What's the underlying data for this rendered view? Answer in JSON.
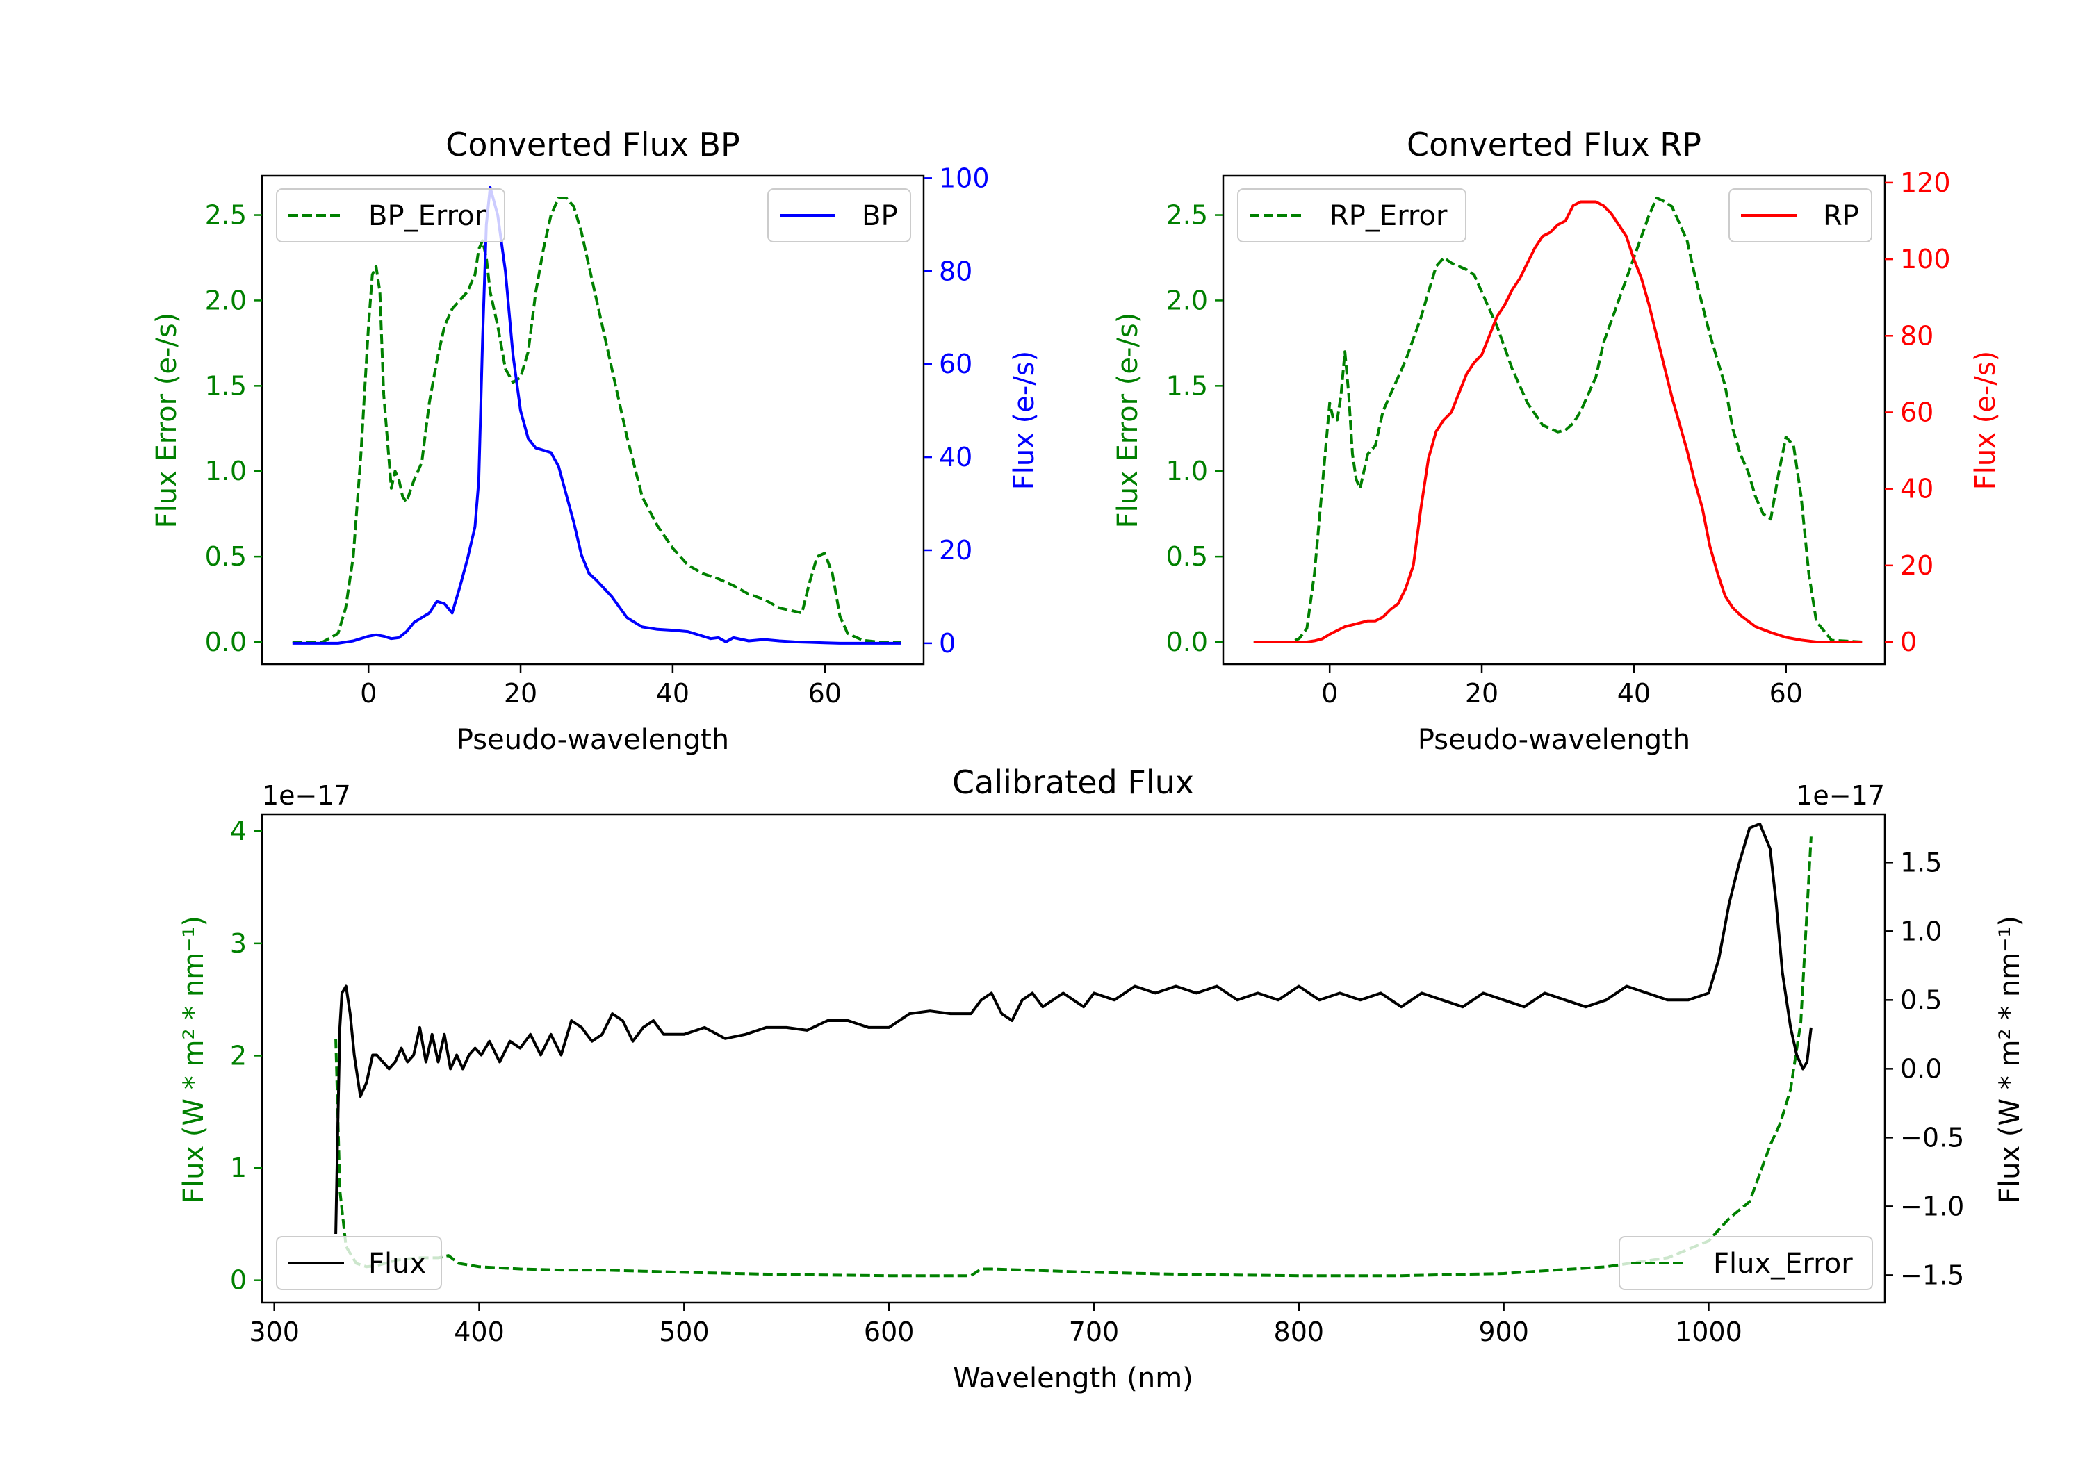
{
  "colors": {
    "error": "#008000",
    "bp": "#0000ff",
    "rp": "#ff0000",
    "flux": "#000000",
    "axis": "#000000"
  },
  "chart_data": [
    {
      "id": "bp",
      "type": "line",
      "title": "Converted Flux BP",
      "xlabel": "Pseudo-wavelength",
      "ylabel_left": "Flux Error (e-/s)",
      "ylabel_right": "Flux (e-/s)",
      "xlim": [
        -14,
        73
      ],
      "ylim_left": [
        -0.13,
        2.73
      ],
      "ylim_right": [
        -4.5,
        100.5
      ],
      "xticks": [
        0,
        20,
        40,
        60
      ],
      "yticks_left": [
        "0.0",
        "0.5",
        "1.0",
        "1.5",
        "2.0",
        "2.5"
      ],
      "yticks_right": [
        "0",
        "20",
        "40",
        "60",
        "80",
        "100"
      ],
      "series": [
        {
          "name": "BP_Error",
          "axis": "left",
          "style": "dashed",
          "color": "#008000",
          "x": [
            -10,
            -6,
            -4,
            -3,
            -2,
            -1,
            0,
            0.5,
            1,
            1.5,
            2,
            3,
            3.5,
            4,
            4.5,
            5,
            6,
            7,
            8,
            9,
            10,
            11,
            12,
            13,
            14,
            14.5,
            15,
            15.5,
            16,
            17,
            18,
            19,
            20,
            21,
            22,
            23,
            24,
            25,
            26,
            27,
            28,
            29,
            30,
            32,
            34,
            36,
            38,
            40,
            42,
            44,
            46,
            48,
            50,
            52,
            54,
            56,
            57,
            58,
            59,
            60,
            61,
            62,
            63,
            65,
            67,
            70
          ],
          "y": [
            0.0,
            0.0,
            0.05,
            0.2,
            0.5,
            1.1,
            1.85,
            2.15,
            2.2,
            2.05,
            1.45,
            0.9,
            1.0,
            0.95,
            0.85,
            0.82,
            0.95,
            1.05,
            1.4,
            1.65,
            1.85,
            1.95,
            2.0,
            2.05,
            2.15,
            2.3,
            2.35,
            2.25,
            2.05,
            1.85,
            1.6,
            1.52,
            1.55,
            1.7,
            2.05,
            2.3,
            2.5,
            2.6,
            2.6,
            2.55,
            2.4,
            2.2,
            2.0,
            1.6,
            1.2,
            0.85,
            0.68,
            0.55,
            0.45,
            0.4,
            0.37,
            0.33,
            0.28,
            0.25,
            0.2,
            0.18,
            0.17,
            0.35,
            0.5,
            0.52,
            0.4,
            0.15,
            0.05,
            0.01,
            0.0,
            0.0
          ]
        },
        {
          "name": "BP",
          "axis": "right",
          "style": "solid",
          "color": "#0000ff",
          "x": [
            -10,
            -4,
            -2,
            0,
            1,
            2,
            3,
            4,
            5,
            6,
            7,
            8,
            9,
            10,
            11,
            12,
            13,
            14,
            14.5,
            15,
            15.5,
            16,
            17,
            18,
            19,
            20,
            21,
            22,
            23,
            24,
            25,
            26,
            27,
            28,
            29,
            30,
            32,
            34,
            36,
            38,
            40,
            42,
            44,
            45,
            46,
            47,
            48,
            50,
            52,
            54,
            56,
            58,
            60,
            62,
            64,
            66,
            68,
            70
          ],
          "y": [
            0,
            0,
            0.5,
            1.5,
            1.8,
            1.5,
            1.0,
            1.2,
            2.5,
            4.5,
            5.5,
            6.5,
            9.0,
            8.5,
            6.5,
            12,
            18,
            25,
            35,
            65,
            90,
            98,
            92,
            80,
            62,
            50,
            44,
            42,
            41.5,
            41,
            38,
            32,
            26,
            19,
            15,
            13.5,
            10,
            5.5,
            3.5,
            3,
            2.8,
            2.5,
            1.5,
            1.0,
            1.2,
            0.3,
            1.2,
            0.5,
            0.8,
            0.5,
            0.3,
            0.2,
            0.1,
            0,
            0,
            0,
            0,
            0
          ]
        }
      ],
      "legend_left": "BP_Error",
      "legend_right": "BP"
    },
    {
      "id": "rp",
      "type": "line",
      "title": "Converted Flux RP",
      "xlabel": "Pseudo-wavelength",
      "ylabel_left": "Flux Error (e-/s)",
      "ylabel_right": "Flux (e-/s)",
      "xlim": [
        -14,
        73
      ],
      "ylim_left": [
        -0.13,
        2.73
      ],
      "ylim_right": [
        -5.8,
        121.8
      ],
      "xticks": [
        0,
        20,
        40,
        60
      ],
      "yticks_left": [
        "0.0",
        "0.5",
        "1.0",
        "1.5",
        "2.0",
        "2.5"
      ],
      "yticks_right": [
        "0",
        "20",
        "40",
        "60",
        "80",
        "100",
        "120"
      ],
      "series": [
        {
          "name": "RP_Error",
          "axis": "left",
          "style": "dashed",
          "color": "#008000",
          "x": [
            -10,
            -5,
            -4,
            -3,
            -2,
            -1,
            0,
            0.5,
            1,
            1.5,
            2,
            2.5,
            3,
            3.5,
            4,
            5,
            6,
            7,
            8,
            10,
            12,
            13,
            14,
            15,
            16,
            17,
            18,
            19,
            20,
            22,
            24,
            26,
            28,
            30,
            31,
            32,
            33,
            34,
            35,
            36,
            38,
            40,
            42,
            43,
            44,
            45,
            46,
            47,
            48,
            50,
            52,
            53,
            54,
            55,
            56,
            57,
            58,
            59,
            60,
            61,
            62,
            63,
            64,
            66,
            70
          ],
          "y": [
            0.0,
            0.0,
            0.02,
            0.08,
            0.4,
            0.9,
            1.4,
            1.3,
            1.3,
            1.45,
            1.7,
            1.45,
            1.1,
            0.95,
            0.9,
            1.1,
            1.15,
            1.35,
            1.45,
            1.65,
            1.9,
            2.05,
            2.2,
            2.25,
            2.22,
            2.2,
            2.18,
            2.15,
            2.05,
            1.85,
            1.6,
            1.4,
            1.27,
            1.23,
            1.24,
            1.28,
            1.35,
            1.45,
            1.55,
            1.75,
            2.0,
            2.25,
            2.5,
            2.6,
            2.58,
            2.55,
            2.45,
            2.35,
            2.15,
            1.8,
            1.5,
            1.25,
            1.1,
            1.0,
            0.85,
            0.75,
            0.72,
            0.98,
            1.2,
            1.15,
            0.85,
            0.4,
            0.12,
            0.01,
            0.0
          ]
        },
        {
          "name": "RP",
          "axis": "right",
          "style": "solid",
          "color": "#ff0000",
          "x": [
            -10,
            -3,
            -2,
            -1,
            0,
            1,
            2,
            3,
            4,
            5,
            6,
            7,
            8,
            9,
            10,
            11,
            12,
            13,
            14,
            15,
            16,
            17,
            18,
            19,
            20,
            21,
            22,
            23,
            24,
            25,
            26,
            27,
            28,
            29,
            30,
            31,
            32,
            33,
            34,
            35,
            36,
            37,
            38,
            39,
            40,
            41,
            42,
            43,
            44,
            45,
            46,
            47,
            48,
            49,
            50,
            51,
            52,
            53,
            54,
            55,
            56,
            58,
            60,
            62,
            64,
            66,
            70
          ],
          "y": [
            0,
            0,
            0.3,
            0.8,
            2,
            3,
            4,
            4.5,
            5,
            5.5,
            5.5,
            6.5,
            8.5,
            10,
            14,
            20,
            35,
            48,
            55,
            58,
            60,
            65,
            70,
            73,
            75,
            80,
            85,
            88,
            92,
            95,
            99,
            103,
            106,
            107,
            109,
            110,
            114,
            115,
            115,
            115,
            114,
            112,
            109,
            106,
            100,
            95,
            88,
            80,
            72,
            64,
            57,
            50,
            42,
            35,
            25,
            18,
            12,
            9,
            7,
            5.5,
            4,
            2.5,
            1.2,
            0.5,
            0,
            0,
            0
          ]
        }
      ],
      "legend_left": "RP_Error",
      "legend_right": "RP"
    },
    {
      "id": "cal",
      "type": "line",
      "title": "Calibrated Flux",
      "xlabel": "Wavelength (nm)",
      "ylabel_left": "Flux (W * m² * nm⁻¹)",
      "ylabel_right": "Flux (W * m² * nm⁻¹)",
      "offset_left": "1e−17",
      "offset_right": "1e−17",
      "xlim": [
        294,
        1086
      ],
      "ylim_left": [
        -0.2,
        4.15
      ],
      "ylim_right": [
        -1.7,
        1.85
      ],
      "xticks": [
        300,
        400,
        500,
        600,
        700,
        800,
        900,
        1000
      ],
      "yticks_left": [
        "0",
        "1",
        "2",
        "3",
        "4"
      ],
      "yticks_left_values": [
        0,
        1,
        2,
        3,
        4
      ],
      "yticks_right": [
        "−1.5",
        "−1.0",
        "−0.5",
        "0.0",
        "0.5",
        "1.0",
        "1.5"
      ],
      "yticks_right_values": [
        -1.5,
        -1.0,
        -0.5,
        0.0,
        0.5,
        1.0,
        1.5
      ],
      "series": [
        {
          "name": "Flux_Error",
          "axis": "left",
          "style": "dashed",
          "color": "#008000",
          "x": [
            330,
            332,
            335,
            340,
            345,
            350,
            360,
            370,
            380,
            385,
            390,
            400,
            420,
            440,
            460,
            480,
            500,
            550,
            600,
            640,
            645,
            650,
            700,
            750,
            800,
            850,
            900,
            950,
            980,
            1000,
            1010,
            1020,
            1025,
            1030,
            1035,
            1040,
            1045,
            1050
          ],
          "y": [
            2.15,
            0.8,
            0.3,
            0.15,
            0.12,
            0.13,
            0.18,
            0.2,
            0.2,
            0.22,
            0.15,
            0.12,
            0.1,
            0.09,
            0.09,
            0.08,
            0.07,
            0.05,
            0.04,
            0.04,
            0.1,
            0.1,
            0.07,
            0.05,
            0.04,
            0.04,
            0.06,
            0.12,
            0.2,
            0.35,
            0.55,
            0.7,
            0.95,
            1.2,
            1.4,
            1.7,
            2.3,
            3.95
          ]
        },
        {
          "name": "Flux",
          "axis": "right",
          "style": "solid",
          "color": "#000000",
          "x": [
            330,
            331,
            332,
            333,
            335,
            337,
            339,
            342,
            345,
            348,
            350,
            353,
            356,
            359,
            362,
            365,
            368,
            371,
            374,
            377,
            380,
            383,
            386,
            389,
            392,
            395,
            398,
            401,
            405,
            410,
            415,
            420,
            425,
            430,
            435,
            440,
            445,
            450,
            455,
            460,
            465,
            470,
            475,
            480,
            485,
            490,
            500,
            510,
            520,
            530,
            540,
            550,
            560,
            570,
            580,
            590,
            600,
            610,
            620,
            630,
            640,
            645,
            650,
            655,
            660,
            665,
            670,
            675,
            680,
            685,
            690,
            695,
            700,
            710,
            720,
            730,
            740,
            750,
            760,
            770,
            780,
            790,
            800,
            810,
            820,
            830,
            840,
            850,
            860,
            870,
            880,
            890,
            900,
            910,
            920,
            930,
            940,
            950,
            960,
            970,
            980,
            990,
            1000,
            1005,
            1010,
            1015,
            1020,
            1025,
            1030,
            1033,
            1036,
            1040,
            1043,
            1046,
            1048,
            1050
          ],
          "y": [
            -1.2,
            -0.4,
            0.3,
            0.55,
            0.6,
            0.4,
            0.1,
            -0.2,
            -0.1,
            0.1,
            0.1,
            0.05,
            0.0,
            0.05,
            0.15,
            0.05,
            0.1,
            0.3,
            0.05,
            0.25,
            0.05,
            0.25,
            0.0,
            0.1,
            0.0,
            0.1,
            0.15,
            0.1,
            0.2,
            0.05,
            0.2,
            0.15,
            0.25,
            0.1,
            0.25,
            0.1,
            0.35,
            0.3,
            0.2,
            0.25,
            0.4,
            0.35,
            0.2,
            0.3,
            0.35,
            0.25,
            0.25,
            0.3,
            0.22,
            0.25,
            0.3,
            0.3,
            0.28,
            0.35,
            0.35,
            0.3,
            0.3,
            0.4,
            0.42,
            0.4,
            0.4,
            0.5,
            0.55,
            0.4,
            0.35,
            0.5,
            0.55,
            0.45,
            0.5,
            0.55,
            0.5,
            0.45,
            0.55,
            0.5,
            0.6,
            0.55,
            0.6,
            0.55,
            0.6,
            0.5,
            0.55,
            0.5,
            0.6,
            0.5,
            0.55,
            0.5,
            0.55,
            0.45,
            0.55,
            0.5,
            0.45,
            0.55,
            0.5,
            0.45,
            0.55,
            0.5,
            0.45,
            0.5,
            0.6,
            0.55,
            0.5,
            0.5,
            0.55,
            0.8,
            1.2,
            1.5,
            1.75,
            1.78,
            1.6,
            1.2,
            0.7,
            0.3,
            0.1,
            0.0,
            0.05,
            0.3
          ]
        }
      ],
      "legend_left": "Flux",
      "legend_right": "Flux_Error"
    }
  ]
}
